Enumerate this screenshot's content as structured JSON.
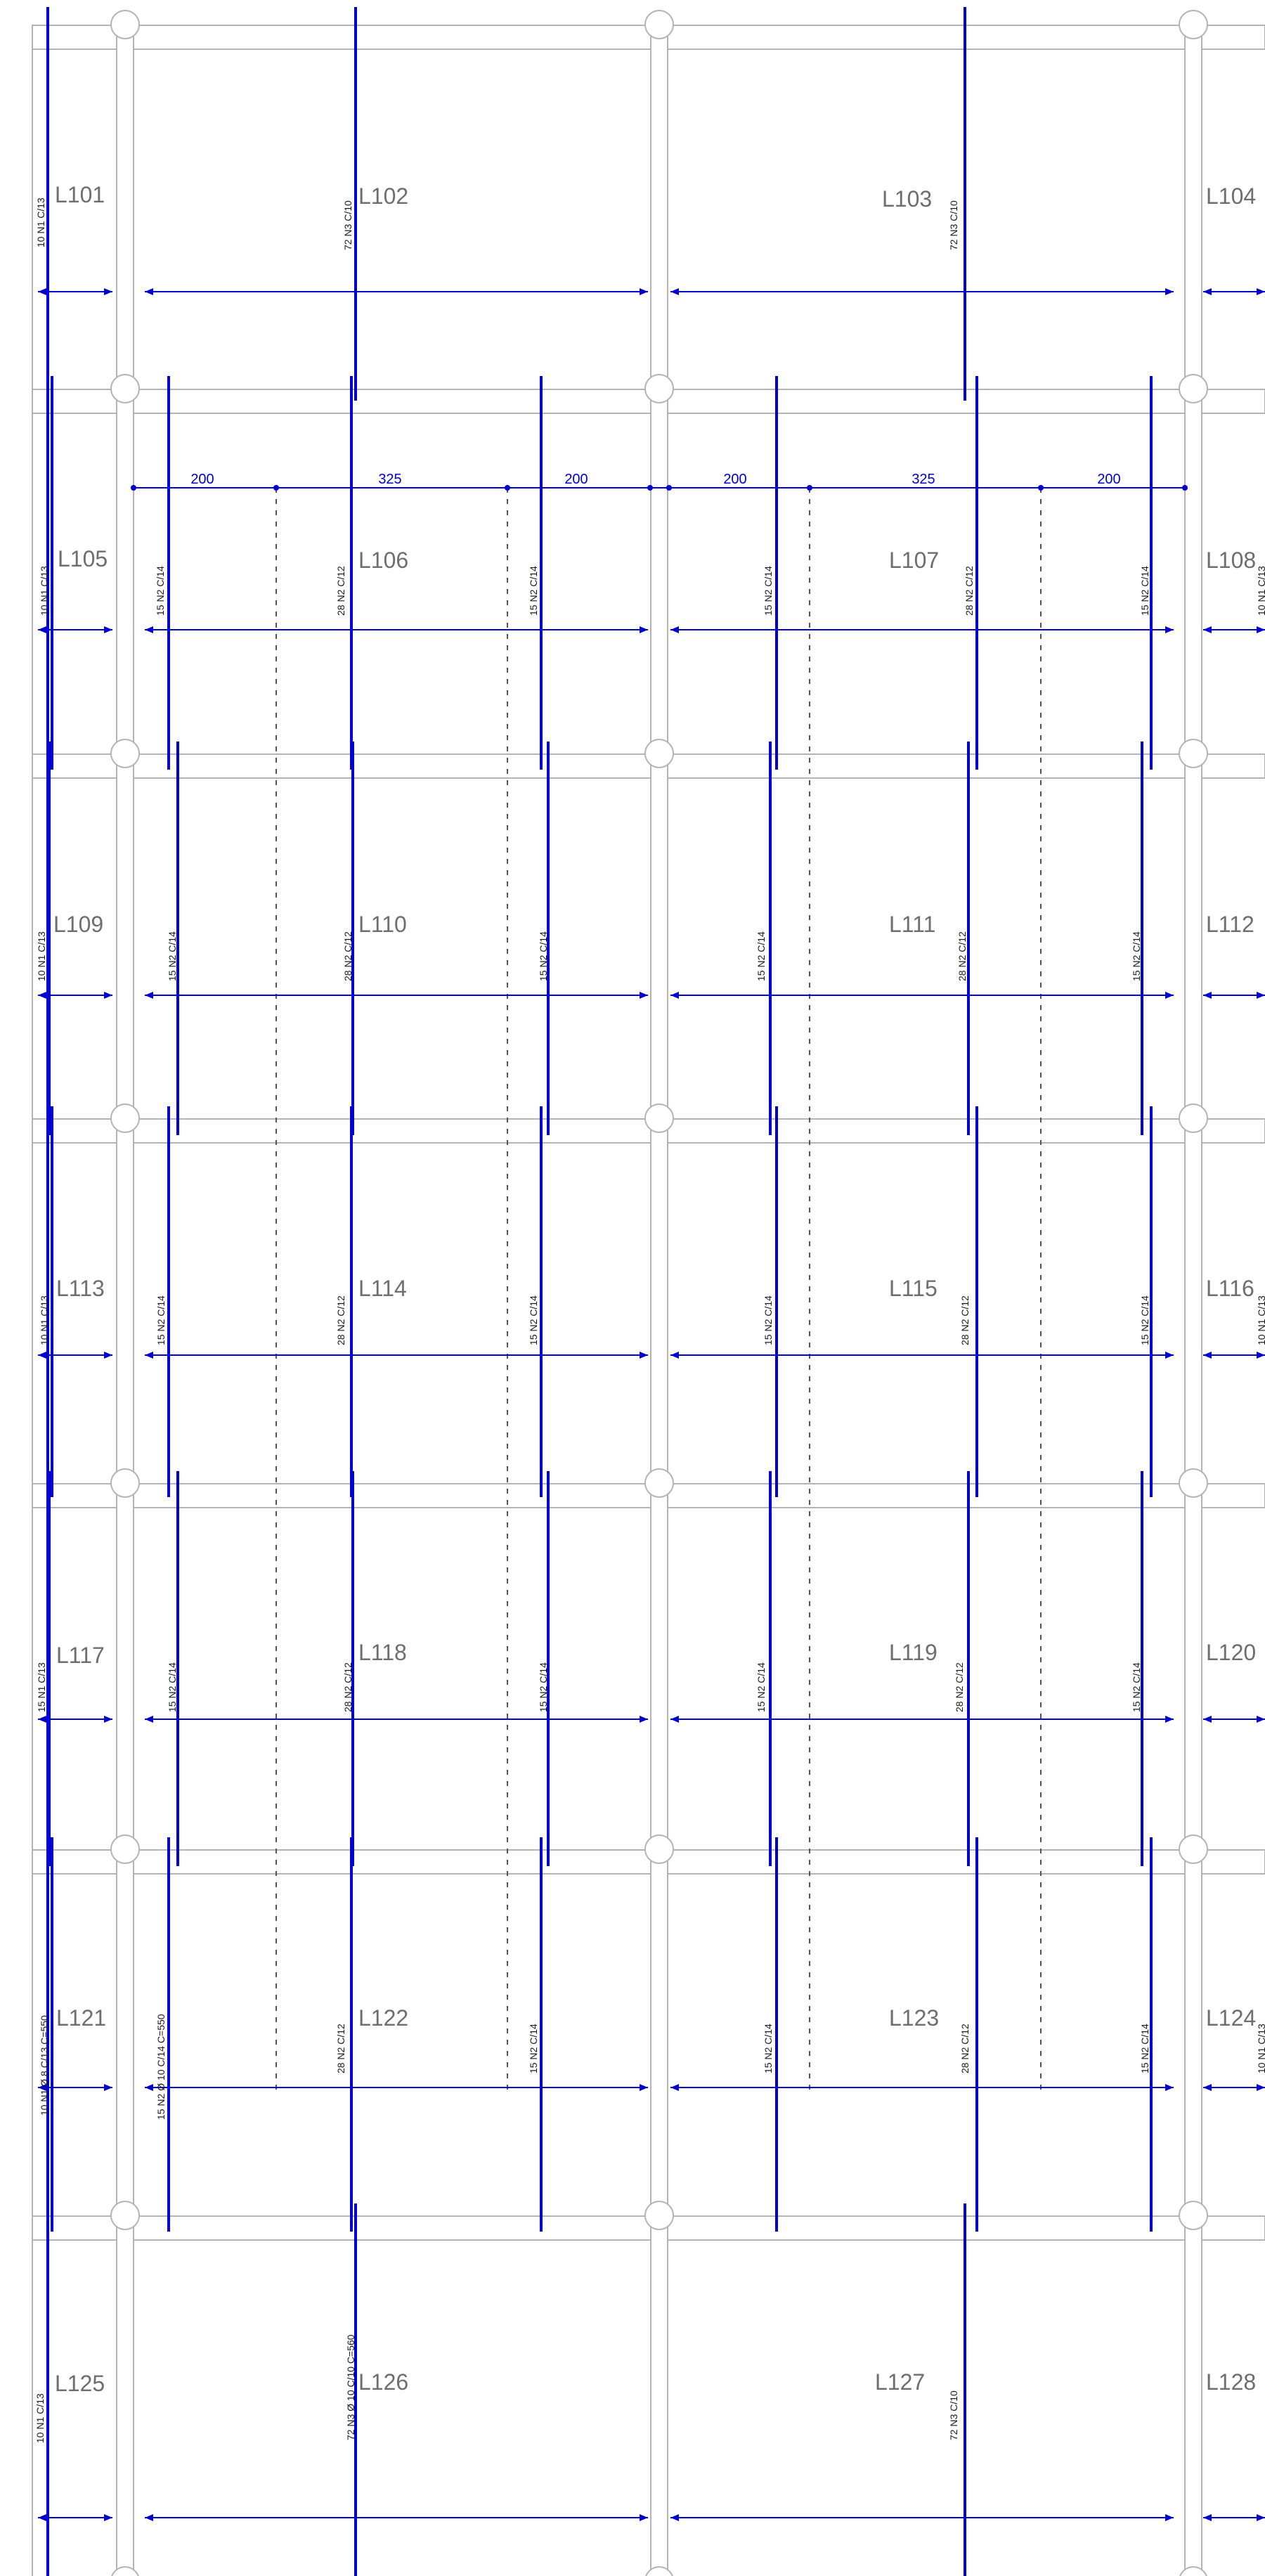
{
  "slabs": [
    "L101",
    "L102",
    "L103",
    "L104",
    "L105",
    "L106",
    "L107",
    "L108",
    "L109",
    "L110",
    "L111",
    "L112",
    "L113",
    "L114",
    "L115",
    "L116",
    "L117",
    "L118",
    "L119",
    "L120",
    "L121",
    "L122",
    "L123",
    "L124",
    "L125",
    "L126",
    "L127",
    "L128"
  ],
  "rebar_labels": {
    "edge_left": "10 N1 C/13",
    "edge_left_row6": "10 N1 Ø 8 C/13 C=550",
    "edge_left_row5": "15 N1 C/13",
    "mid_end_top": "72 N3 C/10",
    "mid_end_bottom": "72 N3 Ø 10 C/10 C=560",
    "side_strip": "15 N2 C/14",
    "side_strip_row6": "15 N2 Ø 10 C/14 C=550",
    "center_strip": "28 N2 C/12",
    "edge_right": "10 N1 C/13"
  },
  "dimensions": {
    "values": [
      "200",
      "325",
      "200",
      "200",
      "325",
      "200"
    ]
  },
  "colors": {
    "rebar": "#0000d0",
    "outline": "#b4b4b4",
    "text": "#6e6e6e"
  }
}
